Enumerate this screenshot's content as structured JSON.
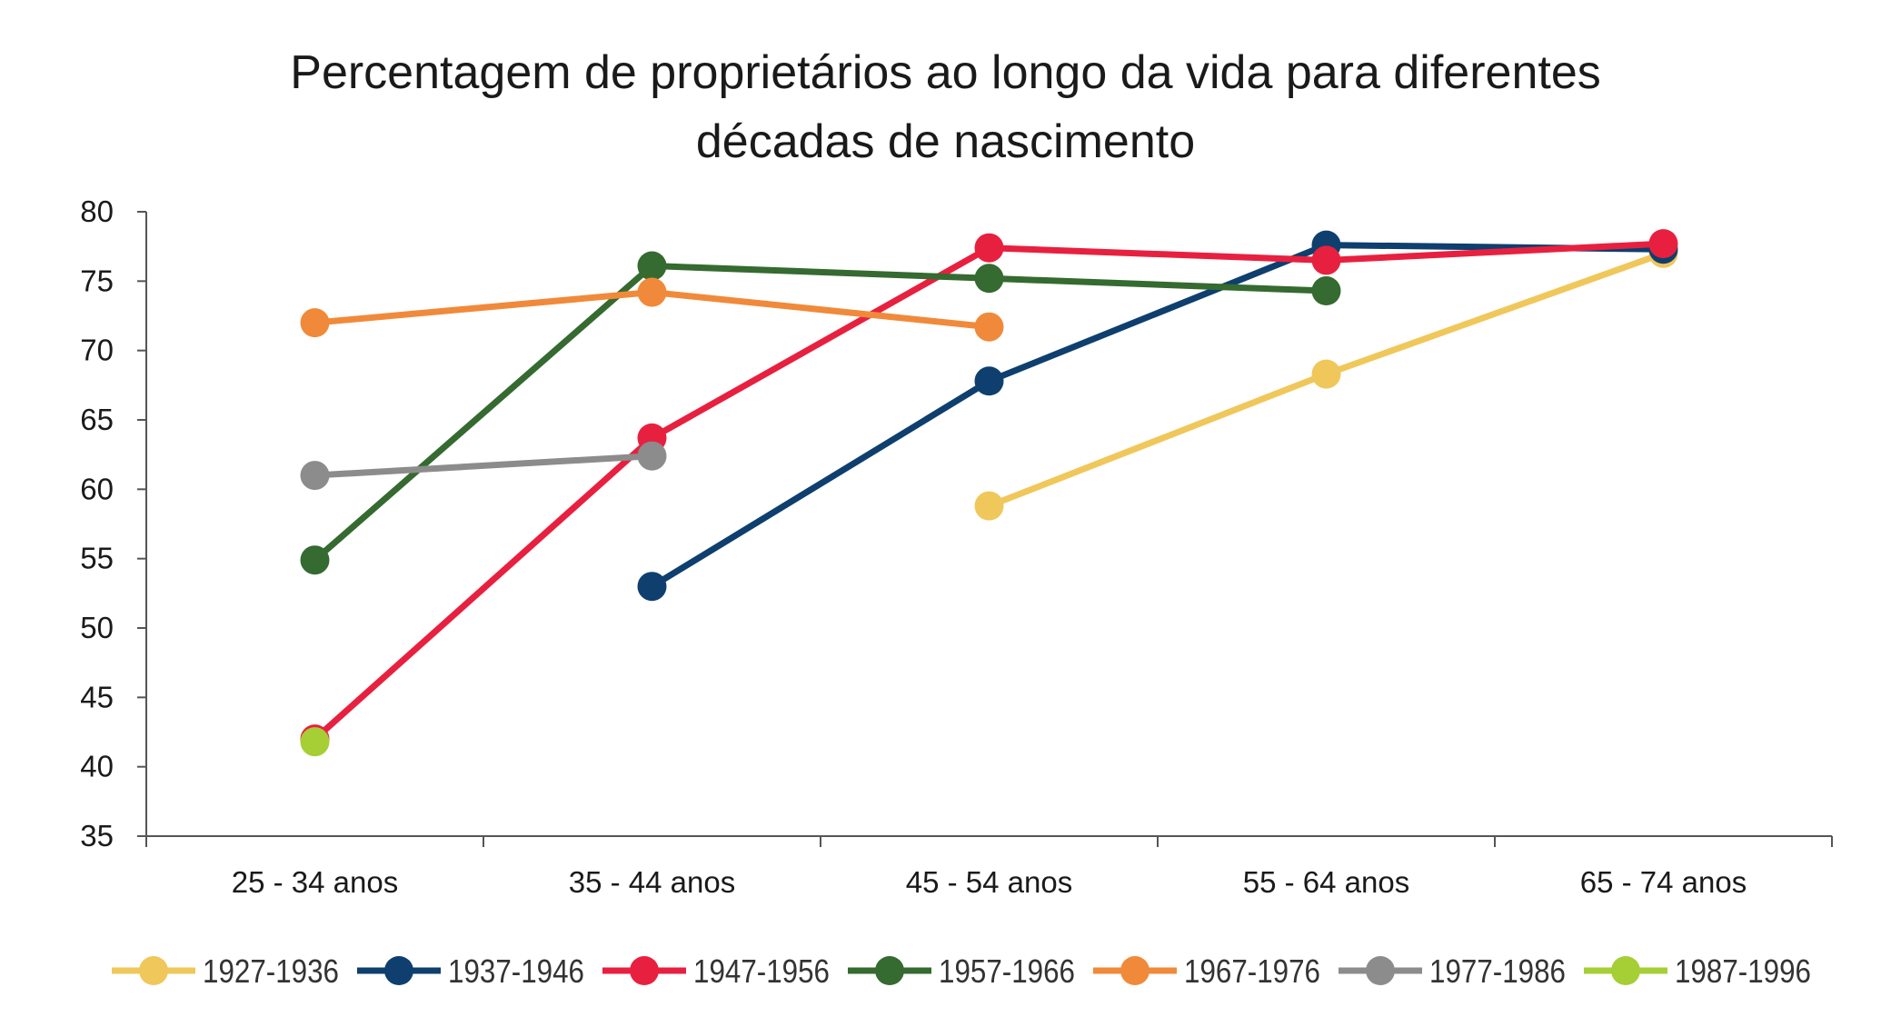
{
  "chart_data": {
    "type": "line",
    "title_lines": [
      "Percentagem de proprietários ao longo da vida para diferentes",
      "décadas de nascimento"
    ],
    "xlabel": "",
    "ylabel": "",
    "categories": [
      "25 - 34 anos",
      "35 - 44 anos",
      "45 - 54 anos",
      "55 - 64 anos",
      "65 - 74 anos"
    ],
    "ylim": [
      35,
      80
    ],
    "yticks": [
      35,
      40,
      45,
      50,
      55,
      60,
      65,
      70,
      75,
      80
    ],
    "grid": false,
    "legend_position": "bottom",
    "series": [
      {
        "name": "1927-1936",
        "color": "#F0C75A",
        "values": [
          null,
          null,
          58.8,
          68.3,
          77.0
        ]
      },
      {
        "name": "1937-1946",
        "color": "#0E3F6E",
        "values": [
          null,
          53.0,
          67.8,
          77.6,
          77.3
        ]
      },
      {
        "name": "1947-1956",
        "color": "#E8203F",
        "values": [
          42.0,
          63.7,
          77.4,
          76.5,
          77.7
        ]
      },
      {
        "name": "1957-1966",
        "color": "#356A30",
        "values": [
          54.9,
          76.1,
          75.2,
          74.3,
          null
        ]
      },
      {
        "name": "1967-1976",
        "color": "#F08A3A",
        "values": [
          72.0,
          74.2,
          71.7,
          null,
          null
        ]
      },
      {
        "name": "1977-1986",
        "color": "#8C8C8C",
        "values": [
          61.0,
          62.4,
          null,
          null,
          null
        ]
      },
      {
        "name": "1987-1996",
        "color": "#A6CE35",
        "values": [
          41.8,
          null,
          null,
          null,
          null
        ]
      }
    ]
  }
}
